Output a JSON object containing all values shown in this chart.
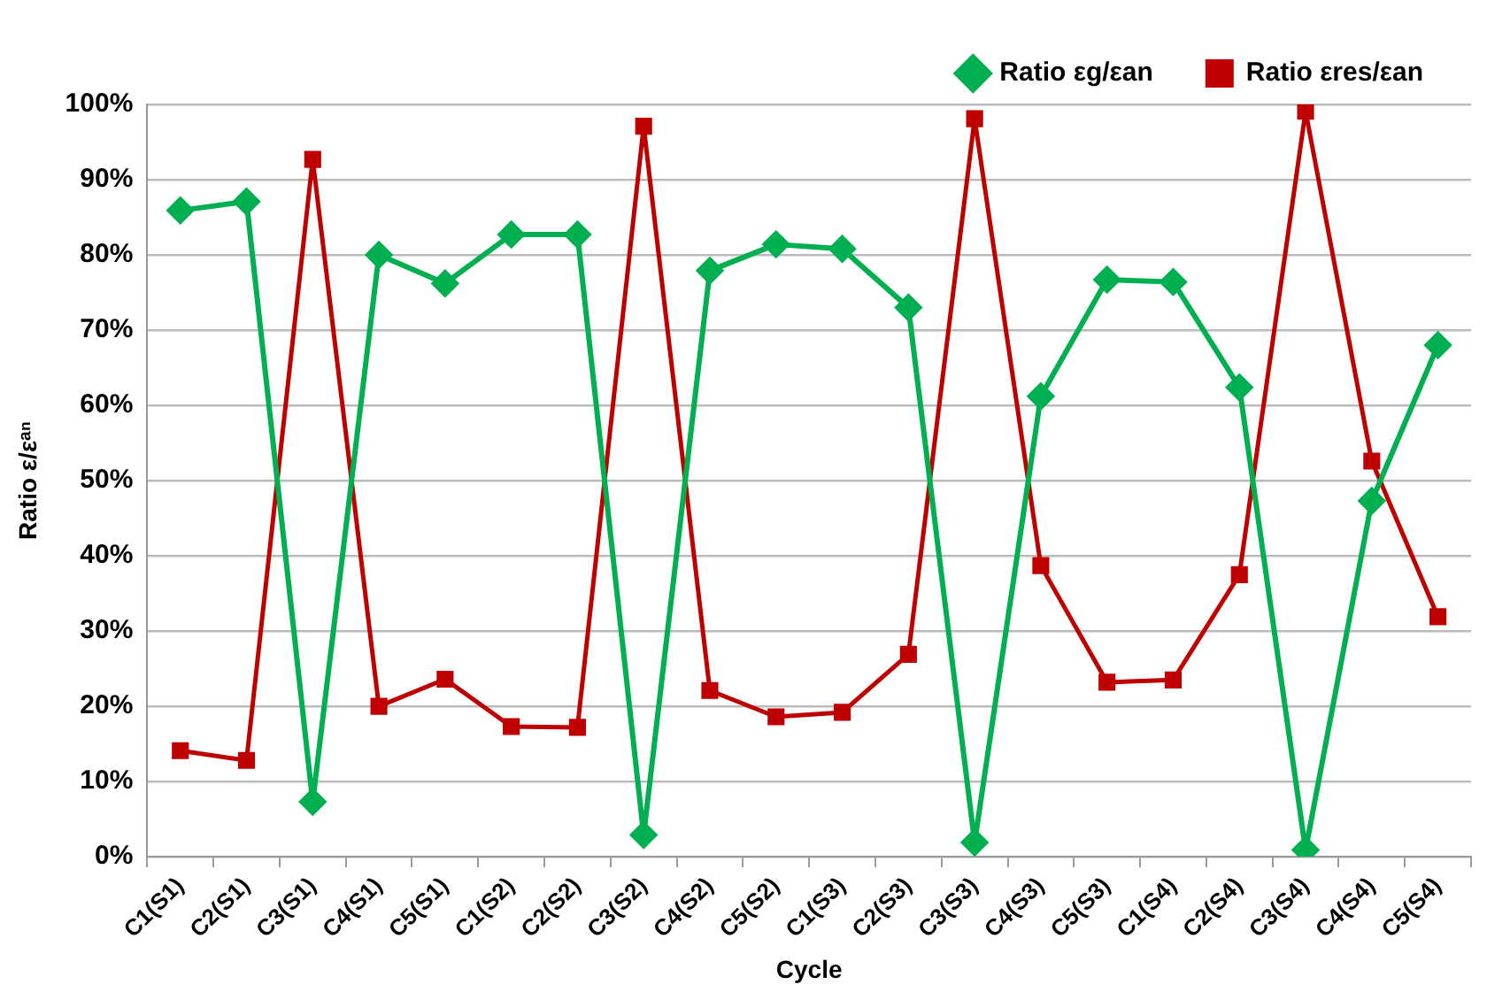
{
  "chart_data": {
    "type": "line",
    "xlabel": "Cycle",
    "ylabel": "Ratio ε/εᵃⁿ",
    "categories": [
      "C1(S1)",
      "C2(S1)",
      "C3(S1)",
      "C4(S1)",
      "C5(S1)",
      "C1(S2)",
      "C2(S2)",
      "C3(S2)",
      "C4(S2)",
      "C5(S2)",
      "C1(S3)",
      "C2(S3)",
      "C3(S3)",
      "C4(S3)",
      "C5(S3)",
      "C1(S4)",
      "C2(S4)",
      "C3(S4)",
      "C4(S4)",
      "C5(S4)"
    ],
    "series": [
      {
        "name": "Ratio εg/εan",
        "color": "#00b050",
        "marker": "diamond",
        "values": [
          85.9,
          87.1,
          7.3,
          80.0,
          76.2,
          82.7,
          82.7,
          2.9,
          77.9,
          81.4,
          80.8,
          73.0,
          1.9,
          61.2,
          76.7,
          76.4,
          62.4,
          0.9,
          47.3,
          68.0
        ]
      },
      {
        "name": "Ratio εres/εan",
        "color": "#c00000",
        "marker": "square",
        "values": [
          14.1,
          12.8,
          92.7,
          20.0,
          23.6,
          17.3,
          17.2,
          97.1,
          22.1,
          18.6,
          19.2,
          26.9,
          98.1,
          38.7,
          23.2,
          23.5,
          37.5,
          99.1,
          52.6,
          31.9
        ]
      }
    ],
    "ylim": [
      0,
      100
    ],
    "yticks": [
      {
        "value": 0,
        "label": "0%"
      },
      {
        "value": 10,
        "label": "10%"
      },
      {
        "value": 20,
        "label": "20%"
      },
      {
        "value": 30,
        "label": "30%"
      },
      {
        "value": 40,
        "label": "40%"
      },
      {
        "value": 50,
        "label": "50%"
      },
      {
        "value": 60,
        "label": "60%"
      },
      {
        "value": 70,
        "label": "70%"
      },
      {
        "value": 80,
        "label": "80%"
      },
      {
        "value": 90,
        "label": "90%"
      },
      {
        "value": 100,
        "label": "100%"
      }
    ],
    "grid": "y",
    "legend": "top right",
    "line_style": "solid"
  }
}
